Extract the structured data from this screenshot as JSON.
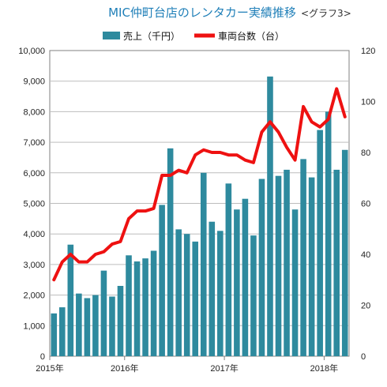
{
  "chart_data": {
    "type": "bar",
    "title": "MIC仲町台店のレンタカー実績推移",
    "subtitle": "<グラフ3>",
    "x_tick_labels": [
      "2015年",
      "2016年",
      "2017年",
      "2018年"
    ],
    "y_left_ticks": [
      "0",
      "1,000",
      "2,000",
      "3,000",
      "4,000",
      "5,000",
      "6,000",
      "7,000",
      "8,000",
      "9,000",
      "10,000"
    ],
    "y_right_ticks": [
      "0",
      "20",
      "40",
      "60",
      "80",
      "100",
      "120"
    ],
    "ylim_left": [
      0,
      10000
    ],
    "ylim_right": [
      0,
      120
    ],
    "grid": "horizontal",
    "legend_position": "top",
    "series": [
      {
        "name": "売上（千円）",
        "type": "bar",
        "axis": "left",
        "color": "#2e8a9e",
        "values": [
          1400,
          1600,
          3650,
          2050,
          1900,
          2000,
          2800,
          1950,
          2300,
          3300,
          3100,
          3200,
          3450,
          4950,
          6800,
          4150,
          4000,
          3750,
          6000,
          4400,
          4100,
          5650,
          4800,
          5150,
          3950,
          5800,
          9150,
          5900,
          6100,
          4800,
          6450,
          5850,
          7400,
          8000,
          6100,
          6750
        ]
      },
      {
        "name": "車両台数（台）",
        "type": "line",
        "axis": "right",
        "color": "#ee1111",
        "values": [
          30,
          37,
          40,
          37,
          37,
          40,
          41,
          44,
          45,
          54,
          57,
          57,
          58,
          71,
          71,
          73,
          72,
          79,
          81,
          80,
          80,
          79,
          79,
          77,
          76,
          88,
          92,
          88,
          82,
          77,
          98,
          92,
          90,
          93,
          105,
          94
        ]
      }
    ]
  }
}
